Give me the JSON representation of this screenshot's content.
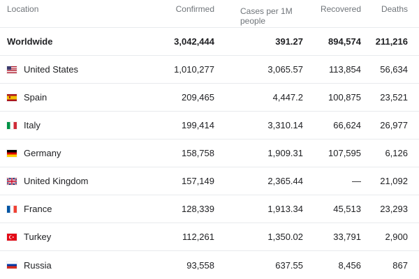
{
  "header": {
    "location": "Location",
    "confirmed": "Confirmed",
    "cases_per_1m_line1": "Cases per 1M",
    "cases_per_1m_line2": "people",
    "recovered": "Recovered",
    "deaths": "Deaths"
  },
  "worldwide": {
    "location": "Worldwide",
    "confirmed": "3,042,444",
    "cases_per_1m": "391.27",
    "recovered": "894,574",
    "deaths": "211,216"
  },
  "rows": [
    {
      "location": "United States",
      "flag": "us-flag-icon",
      "confirmed": "1,010,277",
      "cases_per_1m": "3,065.57",
      "recovered": "113,854",
      "deaths": "56,634"
    },
    {
      "location": "Spain",
      "flag": "spain-flag-icon",
      "confirmed": "209,465",
      "cases_per_1m": "4,447.2",
      "recovered": "100,875",
      "deaths": "23,521"
    },
    {
      "location": "Italy",
      "flag": "italy-flag-icon",
      "confirmed": "199,414",
      "cases_per_1m": "3,310.14",
      "recovered": "66,624",
      "deaths": "26,977"
    },
    {
      "location": "Germany",
      "flag": "germany-flag-icon",
      "confirmed": "158,758",
      "cases_per_1m": "1,909.31",
      "recovered": "107,595",
      "deaths": "6,126"
    },
    {
      "location": "United Kingdom",
      "flag": "uk-flag-icon",
      "confirmed": "157,149",
      "cases_per_1m": "2,365.44",
      "recovered": "—",
      "deaths": "21,092"
    },
    {
      "location": "France",
      "flag": "france-flag-icon",
      "confirmed": "128,339",
      "cases_per_1m": "1,913.34",
      "recovered": "45,513",
      "deaths": "23,293"
    },
    {
      "location": "Turkey",
      "flag": "turkey-flag-icon",
      "confirmed": "112,261",
      "cases_per_1m": "1,350.02",
      "recovered": "33,791",
      "deaths": "2,900"
    },
    {
      "location": "Russia",
      "flag": "russia-flag-icon",
      "confirmed": "93,558",
      "cases_per_1m": "637.55",
      "recovered": "8,456",
      "deaths": "867"
    }
  ],
  "colors": {
    "header_text": "#70757a",
    "body_text": "#202124",
    "divider": "#e8eaed"
  }
}
